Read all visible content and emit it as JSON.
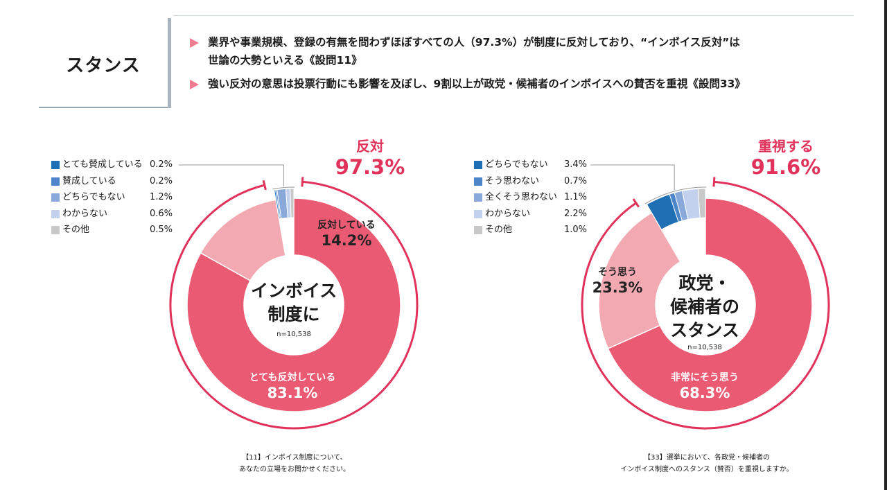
{
  "header": {
    "title": "スタンス",
    "bullets": [
      {
        "lines": [
          "業界や事業規模、登録の有無を問わずほぼすべての人（97.3%）が制度に反対しており、“インボイス反対”は",
          "世論の大勢といえる《設問11》"
        ]
      },
      {
        "lines": [
          "強い反対の意思は投票行動にも影響を及ぼし、9割以上が政党・候補者のインボイスへの賛否を重視《設問33》"
        ]
      }
    ]
  },
  "chart_data": [
    {
      "type": "pie",
      "center_label": [
        "インボイス",
        "制度に"
      ],
      "n_label": "n=10,538",
      "total_label": {
        "text": "反対",
        "value": "97.3%"
      },
      "caption": [
        "【11】インボイス制度について、",
        "あなたの立場をお聞かせください。"
      ],
      "slices": [
        {
          "name": "とても反対している",
          "value": 83.1,
          "display": "83.1%",
          "color": "#ea5a73"
        },
        {
          "name": "反対している",
          "value": 14.2,
          "display": "14.2%",
          "color": "#f3a9b2"
        },
        {
          "name": "とても賛成している",
          "value": 0.2,
          "display": "0.2%",
          "color": "#1f6fb5"
        },
        {
          "name": "賛成している",
          "value": 0.2,
          "display": "0.2%",
          "color": "#4d86c8"
        },
        {
          "name": "どちらでもない",
          "value": 1.2,
          "display": "1.2%",
          "color": "#8aa9db"
        },
        {
          "name": "わからない",
          "value": 0.6,
          "display": "0.6%",
          "color": "#c4d1ee"
        },
        {
          "name": "その他",
          "value": 0.5,
          "display": "0.5%",
          "color": "#c8c8c8"
        }
      ],
      "legend": [
        {
          "name": "とても賛成している",
          "display": "0.2%",
          "color": "#1f6fb5"
        },
        {
          "name": "賛成している",
          "display": "0.2%",
          "color": "#4d86c8"
        },
        {
          "name": "どちらでもない",
          "display": "1.2%",
          "color": "#8aa9db"
        },
        {
          "name": "わからない",
          "display": "0.6%",
          "color": "#c4d1ee"
        },
        {
          "name": "その他",
          "display": "0.5%",
          "color": "#c8c8c8"
        }
      ]
    },
    {
      "type": "pie",
      "center_label": [
        "政党・",
        "候補者の",
        "スタンス"
      ],
      "n_label": "n=10,538",
      "total_label": {
        "text": "重視する",
        "value": "91.6%"
      },
      "caption": [
        "【33】選挙において、各政党・候補者の",
        "インボイス制度へのスタンス（賛否）を重視しますか。"
      ],
      "slices": [
        {
          "name": "非常にそう思う",
          "value": 68.3,
          "display": "68.3%",
          "color": "#ea5a73"
        },
        {
          "name": "そう思う",
          "value": 23.3,
          "display": "23.3%",
          "color": "#f3a9b2"
        },
        {
          "name": "どちらでもない",
          "value": 3.4,
          "display": "3.4%",
          "color": "#1f6fb5"
        },
        {
          "name": "そう思わない",
          "value": 0.7,
          "display": "0.7%",
          "color": "#4d86c8"
        },
        {
          "name": "全くそう思わない",
          "value": 1.1,
          "display": "1.1%",
          "color": "#8aa9db"
        },
        {
          "name": "わからない",
          "value": 2.2,
          "display": "2.2%",
          "color": "#c4d1ee"
        },
        {
          "name": "その他",
          "value": 1.0,
          "display": "1.0%",
          "color": "#c8c8c8"
        }
      ],
      "legend": [
        {
          "name": "どちらでもない",
          "display": "3.4%",
          "color": "#1f6fb5"
        },
        {
          "name": "そう思わない",
          "display": "0.7%",
          "color": "#4d86c8"
        },
        {
          "name": "全くそう思わない",
          "display": "1.1%",
          "color": "#8aa9db"
        },
        {
          "name": "わからない",
          "display": "2.2%",
          "color": "#c4d1ee"
        },
        {
          "name": "その他",
          "display": "1.0%",
          "color": "#c8c8c8"
        }
      ]
    }
  ]
}
